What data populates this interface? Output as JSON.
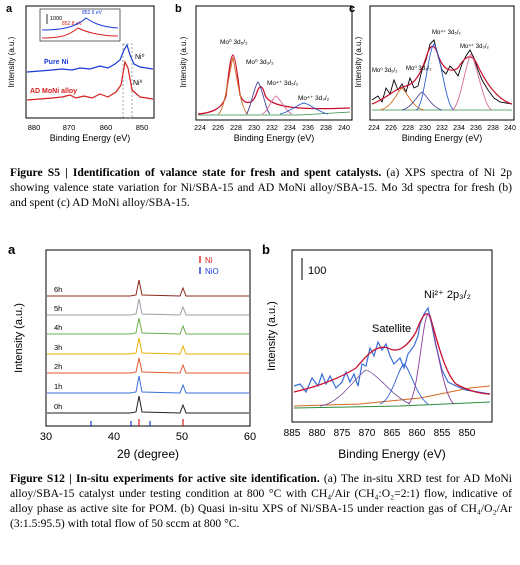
{
  "figure_s5": {
    "panel_a": {
      "letter": "a",
      "ylabel": "Intensity (a.u.)",
      "xlabel": "Binding Energy (eV)",
      "xticks": [
        "880",
        "870",
        "860",
        "850"
      ],
      "scale_label": "1000",
      "inset_peak_top": "852.6 eV",
      "inset_peak_bottom": "852.8 eV",
      "label_top_curve": "Pure Ni",
      "label_bottom_curve": "AD MoNi alloy",
      "peak_label_upper": "Ni⁰",
      "peak_label_lower": "Ni⁰"
    },
    "panel_b": {
      "letter": "b",
      "ylabel": "Intensity (a.u.)",
      "xlabel": "Binding Energy (eV)",
      "xticks": [
        "224",
        "226",
        "228",
        "230",
        "232",
        "234",
        "236",
        "238",
        "240"
      ],
      "peaks": [
        "Mo⁰ 3d₅/₂",
        "Mo⁰ 3d₃/₂",
        "Mo⁴⁺ 3d₅/₂",
        "Mo⁴⁺ 3d₃/₂"
      ]
    },
    "panel_c": {
      "letter": "c",
      "ylabel": "Intensity (a.u.)",
      "xlabel": "Binding Energy (eV)",
      "xticks": [
        "224",
        "226",
        "228",
        "230",
        "232",
        "234",
        "236",
        "238",
        "240"
      ],
      "peaks": [
        "Mo⁰ 3d₅/₂",
        "Mo⁰ 3d₃/₂",
        "Mo⁴⁺ 3d₅/₂",
        "Mo⁴⁺ 3d₃/₂"
      ]
    },
    "caption_bold": "Figure S5 | Identification of valance state for fresh and spent catalysts.",
    "caption_text": " (a) XPS spectra of Ni 2p showing valence state variation for Ni/SBA-15 and AD MoNi alloy/SBA-15. Mo 3d spectra for fresh (b) and spent (c) AD MoNi alloy/SBA-15."
  },
  "figure_s12": {
    "panel_a": {
      "letter": "a",
      "ylabel": "Intensity (a.u.)",
      "xlabel": "2θ (degree)",
      "xticks": [
        "30",
        "40",
        "50",
        "60"
      ],
      "legend_ni": "Ni",
      "legend_nio": "NiO",
      "traces": [
        "6h",
        "5h",
        "4h",
        "3h",
        "2h",
        "1h",
        "0h"
      ]
    },
    "panel_b": {
      "letter": "b",
      "ylabel": "Intensity (a.u.)",
      "xlabel": "Binding Energy (eV)",
      "xticks": [
        "885",
        "880",
        "875",
        "870",
        "865",
        "860",
        "855",
        "850"
      ],
      "scale_label": "100",
      "peak_label": "Ni²⁺ 2p₃/₂",
      "satellite_label": "Satellite"
    },
    "caption_bold": "Figure S12 | In-situ experiments for active site identification.",
    "caption_text": " (a) The in-situ XRD test for AD MoNi alloy/SBA-15 catalyst under testing condition at 800 °C with CH₄/Air (CH₄:O₂=2:1) flow, indicative of alloy phase as active site for POM. (b) Quasi in-situ XPS of Ni/SBA-15 under reaction gas of CH₄/O₂/Ar (3:1.5:95.5) with total flow of 50 sccm at 800 °C."
  }
}
